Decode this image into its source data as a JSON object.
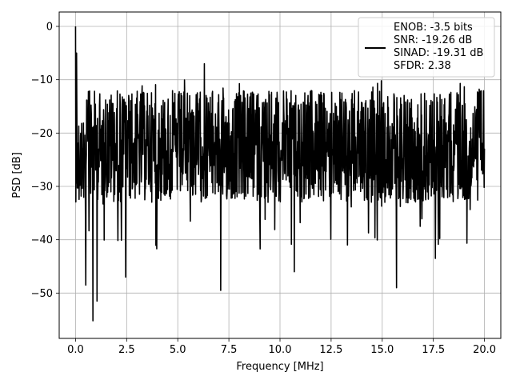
{
  "chart_data": {
    "type": "line",
    "title": "",
    "xlabel": "Frequency [MHz]",
    "ylabel": "PSD [dB]",
    "xlim": [
      -0.8,
      20.8
    ],
    "ylim": [
      -58.5,
      2.7
    ],
    "x_ticks": [
      0.0,
      2.5,
      5.0,
      7.5,
      10.0,
      12.5,
      15.0,
      17.5,
      20.0
    ],
    "x_tick_labels": [
      "0.0",
      "2.5",
      "5.0",
      "7.5",
      "10.0",
      "12.5",
      "15.0",
      "17.5",
      "20.0"
    ],
    "y_ticks": [
      0,
      -10,
      -20,
      -30,
      -40,
      -50
    ],
    "y_tick_labels": [
      "0",
      "−10",
      "−20",
      "−30",
      "−40",
      "−50"
    ],
    "grid": true,
    "legend_position": "top-right",
    "series": [
      {
        "name": "ENOB: -3.5 bits\nSNR: -19.26 dB\nSINAD: -19.31 dB\nSFDR: 2.38",
        "color": "#000000",
        "description_of_shape": "dense noise floor roughly -12 to -33 dB across 0-20 MHz, peak 0 dB at 0 MHz",
        "x_range": [
          0,
          20
        ],
        "notable_points": [
          {
            "x": 0.0,
            "y": 0.0
          },
          {
            "x": 0.05,
            "y": -5.0
          },
          {
            "x": 0.5,
            "y": -48.5
          },
          {
            "x": 0.85,
            "y": -55.2
          },
          {
            "x": 1.05,
            "y": -51.5
          },
          {
            "x": 2.45,
            "y": -47.0
          },
          {
            "x": 7.1,
            "y": -49.5
          },
          {
            "x": 6.3,
            "y": -7.0
          },
          {
            "x": 10.7,
            "y": -46.0
          },
          {
            "x": 15.7,
            "y": -49.0
          },
          {
            "x": 17.6,
            "y": -43.5
          }
        ]
      }
    ],
    "legend_entries": [
      "ENOB: -3.5 bits",
      "SNR: -19.26 dB",
      "SINAD: -19.31 dB",
      "SFDR: 2.38"
    ]
  },
  "colors": {
    "line": "#000000",
    "grid": "#b0b0b0",
    "axes": "#000000",
    "background": "#ffffff"
  }
}
